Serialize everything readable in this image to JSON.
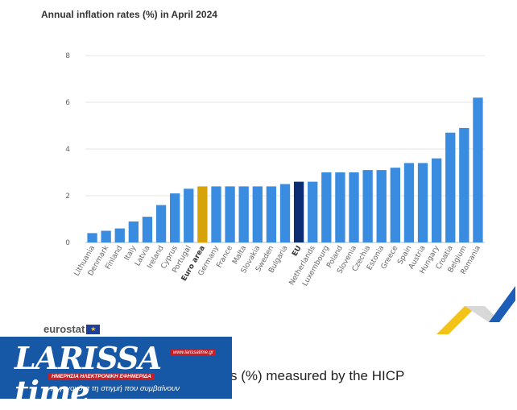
{
  "chart_data": {
    "type": "bar",
    "title": "Annual inflation rates (%) in April 2024",
    "categories": [
      "Lithuania",
      "Denmark",
      "Finland",
      "Italy",
      "Latvia",
      "Ireland",
      "Cyprus",
      "Portugal",
      "Euro area",
      "Germany",
      "France",
      "Malta",
      "Slovakia",
      "Sweden",
      "Bulgaria",
      "EU",
      "Netherlands",
      "Luxembourg",
      "Poland",
      "Slovenia",
      "Czechia",
      "Estonia",
      "Greece",
      "Spain",
      "Austria",
      "Hungary",
      "Croatia",
      "Belgium",
      "Romania"
    ],
    "values": [
      0.4,
      0.5,
      0.6,
      0.9,
      1.1,
      1.6,
      2.1,
      2.3,
      2.4,
      2.4,
      2.4,
      2.4,
      2.4,
      2.4,
      2.5,
      2.6,
      2.6,
      3.0,
      3.0,
      3.0,
      3.1,
      3.1,
      3.2,
      3.4,
      3.4,
      3.6,
      4.7,
      4.9,
      6.2
    ],
    "highlight": {
      "Euro area": "#d6a40a",
      "EU": "#0c2c73"
    },
    "bar_color": "#3a8ce0",
    "yticks": [
      0,
      2,
      4,
      6,
      8
    ],
    "ylim": [
      0,
      8
    ],
    "grid": true,
    "xlabel": "",
    "ylabel": ""
  },
  "footer": {
    "source": "eurostat",
    "subtitle_fragment": "s (%) measured by the HICP"
  },
  "logo": {
    "name": "LARISSA time",
    "site": "www.larissatime.gr",
    "banner": "ΗΜΕΡΗΣΙΑ ΗΛΕΚΤΡΟΝΙΚΗ ΕΦΗΜΕΡΙΔΑ",
    "tagline": "τα γεγονότα τη στιγμή που συμβαίνουν"
  }
}
